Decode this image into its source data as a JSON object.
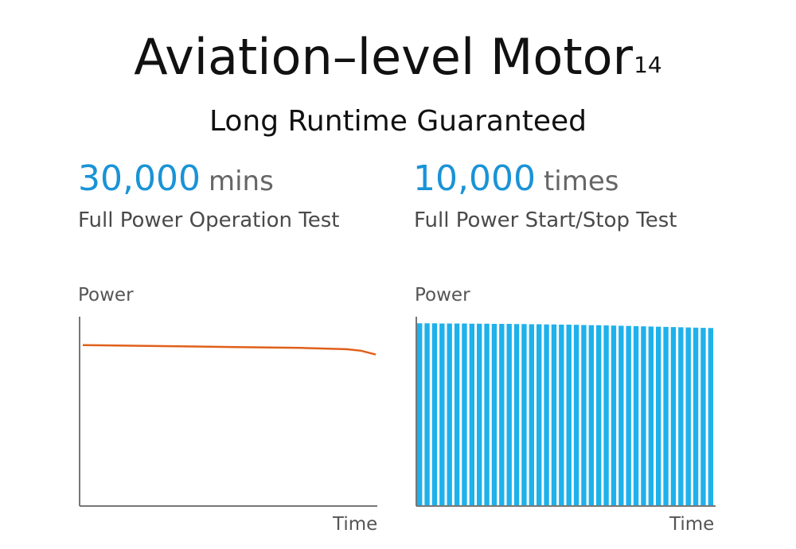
{
  "header": {
    "title": "Aviation–level Motor",
    "title_sup": "14",
    "subtitle": "Long Runtime Guaranteed"
  },
  "stats": [
    {
      "number": "30,000",
      "unit": "mins",
      "description": "Full Power Operation Test"
    },
    {
      "number": "10,000",
      "unit": "times",
      "description": "Full Power Start/Stop Test"
    }
  ],
  "colors": {
    "accent_blue": "#1a93d6",
    "bar_blue": "#1eb1ec",
    "line_orange": "#e0601a",
    "axis": "#777777"
  },
  "chart_data": [
    {
      "type": "line",
      "title": "",
      "xlabel": "Time",
      "ylabel": "Power",
      "ylim": [
        0,
        1
      ],
      "xlim": [
        0,
        1
      ],
      "grid": false,
      "series": [
        {
          "x": [
            0,
            0.25,
            0.5,
            0.75,
            0.9,
            0.95,
            1.0
          ],
          "y": [
            0.85,
            0.845,
            0.84,
            0.835,
            0.828,
            0.82,
            0.8
          ]
        }
      ]
    },
    {
      "type": "bar",
      "title": "",
      "xlabel": "Time",
      "ylabel": "Power",
      "ylim": [
        0,
        1
      ],
      "grid": false,
      "values": [
        0.965,
        0.965,
        0.965,
        0.964,
        0.964,
        0.964,
        0.964,
        0.963,
        0.963,
        0.963,
        0.962,
        0.962,
        0.962,
        0.961,
        0.961,
        0.96,
        0.96,
        0.959,
        0.959,
        0.958,
        0.958,
        0.957,
        0.956,
        0.955,
        0.955,
        0.954,
        0.953,
        0.952,
        0.951,
        0.95,
        0.949,
        0.948,
        0.947,
        0.946,
        0.945,
        0.944,
        0.943,
        0.942,
        0.941,
        0.94
      ]
    }
  ]
}
